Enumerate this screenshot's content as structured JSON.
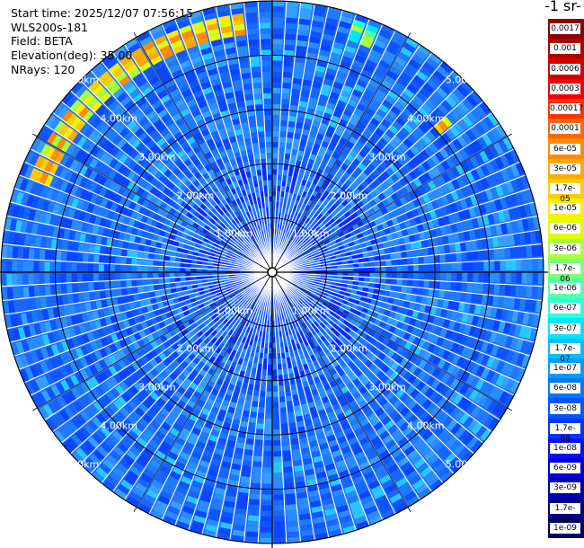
{
  "header": {
    "start_time": "Start time: 2025/12/07 07:56:15",
    "instrument": "WLS200s-181",
    "field": "Field: BETA",
    "elevation": "Elevation(deg): 35.00",
    "nrays": "NRays: 120"
  },
  "colorbar": {
    "title": "-1 sr-",
    "labels": [
      "0.0017",
      "0.001",
      "0.0006",
      "0.0003",
      "0.00017",
      "0.0001",
      "6e-05",
      "3e-05",
      "1.7e-05",
      "1e-05",
      "6e-06",
      "3e-06",
      "1.7e-06",
      "1e-06",
      "6e-07",
      "3e-07",
      "1.7e-07",
      "1e-07",
      "6e-08",
      "3e-08",
      "1.7e-08",
      "1e-08",
      "6e-09",
      "3e-09",
      "1.7e-09",
      "1e-09"
    ],
    "colors": [
      "#8b0000",
      "#b00000",
      "#d40000",
      "#f40000",
      "#ff3300",
      "#ff6600",
      "#ff8c00",
      "#ffaa00",
      "#ffcc00",
      "#ffee00",
      "#ddff00",
      "#a8ff3c",
      "#7cff79",
      "#55ffaa",
      "#2bffd4",
      "#00e6ff",
      "#00c0ff",
      "#009cff",
      "#0078ff",
      "#0056ff",
      "#0034ff",
      "#0010ff",
      "#0000dd",
      "#0000b0",
      "#00008a",
      "#000066"
    ]
  },
  "chart_data": {
    "type": "heatmap",
    "projection": "polar-ppi",
    "rays": 120,
    "range_rings_km": [
      1,
      2,
      3,
      4,
      5
    ],
    "range_labels": [
      "1.00km",
      "2.00km",
      "3.00km",
      "4.00km",
      "5.00km"
    ],
    "max_range_km": 5.0,
    "background_level": "1e-07",
    "features": [
      {
        "name": "aerosol layer arc",
        "range_km": [
          4.4,
          4.8
        ],
        "azimuth_deg": [
          290,
          355
        ],
        "level": "1.7e-05"
      },
      {
        "name": "aerosol patch",
        "range_km": [
          4.5,
          4.9
        ],
        "azimuth_deg": [
          18,
          25
        ],
        "level": "1e-06"
      },
      {
        "name": "aerosol patch",
        "range_km": [
          4.0,
          4.3
        ],
        "azimuth_deg": [
          47,
          52
        ],
        "level": "1.7e-05"
      }
    ]
  }
}
